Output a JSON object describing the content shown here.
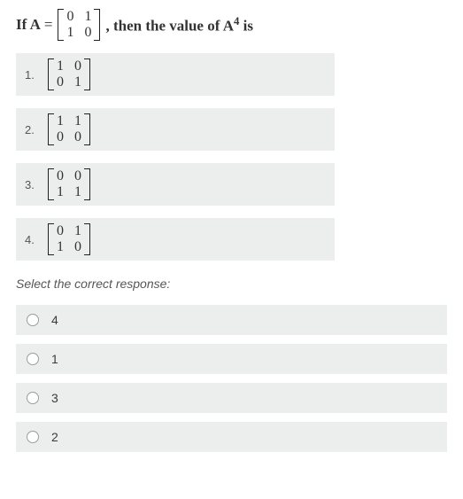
{
  "question": {
    "prefix": "If A",
    "eq": "=",
    "matrixA": [
      "0",
      "1",
      "1",
      "0"
    ],
    "middle": ", then the value of A",
    "exp": "4",
    "suffix": " is"
  },
  "options": [
    {
      "n": "1.",
      "m": [
        "1",
        "0",
        "0",
        "1"
      ]
    },
    {
      "n": "2.",
      "m": [
        "1",
        "1",
        "0",
        "0"
      ]
    },
    {
      "n": "3.",
      "m": [
        "0",
        "0",
        "1",
        "1"
      ]
    },
    {
      "n": "4.",
      "m": [
        "0",
        "1",
        "1",
        "0"
      ]
    }
  ],
  "prompt": "Select the correct response:",
  "responses": [
    "4",
    "1",
    "3",
    "2"
  ],
  "colors": {
    "option_bg": "#eceded",
    "page_bg": "#ffffff",
    "text": "#333333",
    "radio_border": "#9b9b9b"
  }
}
